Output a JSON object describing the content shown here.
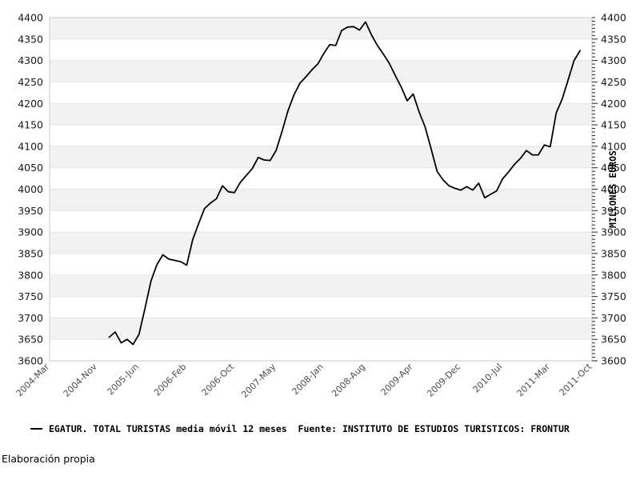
{
  "page": {
    "background": "#ffffff"
  },
  "legend": {
    "label": "EGATUR. TOTAL TURISTAS media móvil 12 meses  Fuente: INSTITUTO DE ESTUDIOS TURISTICOS: FRONTUR"
  },
  "footer": {
    "text": "Elaboración propia"
  },
  "chart_data": {
    "type": "line",
    "title": "",
    "xlabel": "",
    "ylabel_right": "MILLONES EUROS",
    "ylim": [
      3600,
      4400
    ],
    "ytick_step": 50,
    "yticks": [
      3600,
      3650,
      3700,
      3750,
      3800,
      3850,
      3900,
      3950,
      4000,
      4050,
      4100,
      4150,
      4200,
      4250,
      4300,
      4350,
      4400
    ],
    "grid": "horizontal-stripes",
    "legend_position": "bottom-left",
    "colors": {
      "band": "#f2f2f2",
      "gridline": "#e5e5e5",
      "border": "#c9c9c9",
      "tick_mark": "#262626",
      "ytick_text": "#1a1a1a",
      "xtick_text": "#4d4d4d",
      "line": "#000000"
    },
    "axis_month_span": 91,
    "xticks": [
      {
        "label": "2004-Mar",
        "month_index": 0
      },
      {
        "label": "2004-Nov",
        "month_index": 8
      },
      {
        "label": "2005-Jun",
        "month_index": 15
      },
      {
        "label": "2006-Feb",
        "month_index": 23
      },
      {
        "label": "2006-Oct",
        "month_index": 31
      },
      {
        "label": "2007-May",
        "month_index": 38
      },
      {
        "label": "2008-Jan",
        "month_index": 46
      },
      {
        "label": "2008-Aug",
        "month_index": 53
      },
      {
        "label": "2009-Apr",
        "month_index": 61
      },
      {
        "label": "2009-Dec",
        "month_index": 69
      },
      {
        "label": "2010-Jul",
        "month_index": 76
      },
      {
        "label": "2011-Mar",
        "month_index": 84
      },
      {
        "label": "2011-Oct",
        "month_index": 91
      }
    ],
    "series": [
      {
        "name": "EGATUR. TOTAL TURISTAS media móvil 12 meses",
        "start_month": "2005-Jan",
        "start_month_index": 10,
        "values": [
          3655,
          3667,
          3642,
          3650,
          3638,
          3662,
          3722,
          3786,
          3824,
          3847,
          3837,
          3834,
          3831,
          3823,
          3882,
          3920,
          3955,
          3968,
          3978,
          4008,
          3994,
          3992,
          4016,
          4032,
          4048,
          4074,
          4068,
          4067,
          4090,
          4135,
          4183,
          4220,
          4247,
          4262,
          4278,
          4292,
          4316,
          4337,
          4335,
          4370,
          4378,
          4379,
          4371,
          4390,
          4360,
          4335,
          4315,
          4293,
          4265,
          4238,
          4206,
          4222,
          4180,
          4145,
          4095,
          4042,
          4022,
          4008,
          4002,
          3998,
          4006,
          3998,
          4014,
          3980,
          3988,
          3996,
          4024,
          4040,
          4058,
          4072,
          4090,
          4080,
          4080,
          4103,
          4099,
          4178,
          4210,
          4255,
          4300,
          4323
        ]
      }
    ]
  }
}
